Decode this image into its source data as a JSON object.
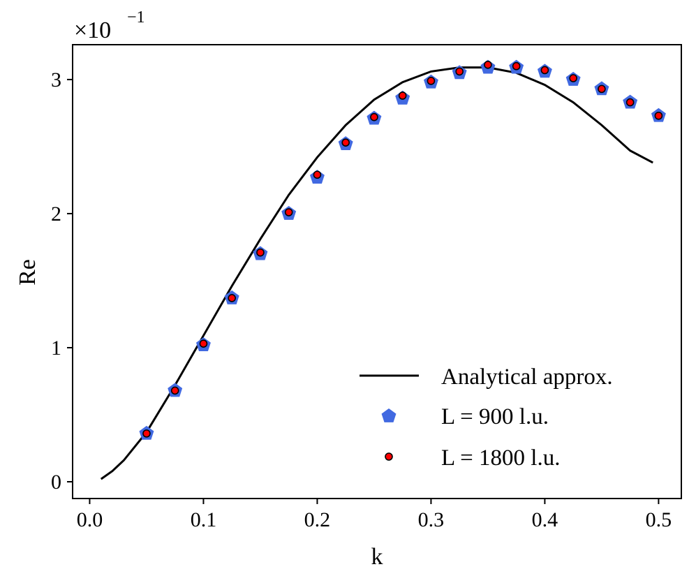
{
  "chart_data": {
    "type": "scatter",
    "title": "",
    "xlabel": "k",
    "ylabel": "Re",
    "xlim": [
      -0.015,
      0.52
    ],
    "ylim": [
      -0.125,
      3.26
    ],
    "y_multiplier": {
      "base": "×10",
      "exponent": "−1"
    },
    "x_ticks": [
      {
        "value": 0.0,
        "label": "0.0"
      },
      {
        "value": 0.1,
        "label": "0.1"
      },
      {
        "value": 0.2,
        "label": "0.2"
      },
      {
        "value": 0.3,
        "label": "0.3"
      },
      {
        "value": 0.4,
        "label": "0.4"
      },
      {
        "value": 0.5,
        "label": "0.5"
      }
    ],
    "y_ticks": [
      {
        "value": 0,
        "label": "0"
      },
      {
        "value": 1,
        "label": "1"
      },
      {
        "value": 2,
        "label": "2"
      },
      {
        "value": 3,
        "label": "3"
      }
    ],
    "grid": false,
    "legend": {
      "position": "lower-right"
    },
    "series": [
      {
        "name": "Analytical approx.",
        "kind": "line",
        "color": "#000000",
        "x": [
          0.01,
          0.02,
          0.03,
          0.05,
          0.075,
          0.1,
          0.125,
          0.15,
          0.175,
          0.2,
          0.225,
          0.25,
          0.275,
          0.3,
          0.325,
          0.35,
          0.375,
          0.4,
          0.425,
          0.45,
          0.475,
          0.495
        ],
        "y": [
          0.02,
          0.08,
          0.16,
          0.37,
          0.72,
          1.09,
          1.46,
          1.81,
          2.14,
          2.42,
          2.66,
          2.85,
          2.98,
          3.06,
          3.09,
          3.09,
          3.05,
          2.96,
          2.83,
          2.66,
          2.47,
          2.38
        ]
      },
      {
        "name": "L = 900 l.u.",
        "kind": "marker-pentagon",
        "color": "#4169e1",
        "x": [
          0.05,
          0.075,
          0.1,
          0.125,
          0.15,
          0.175,
          0.2,
          0.225,
          0.25,
          0.275,
          0.3,
          0.325,
          0.35,
          0.375,
          0.4,
          0.425,
          0.45,
          0.475,
          0.5
        ],
        "y": [
          0.36,
          0.68,
          1.02,
          1.37,
          1.7,
          2.0,
          2.27,
          2.52,
          2.71,
          2.86,
          2.98,
          3.05,
          3.09,
          3.09,
          3.06,
          3.0,
          2.93,
          2.83,
          2.73
        ]
      },
      {
        "name": "L = 1800 l.u.",
        "kind": "marker-circle",
        "color": "#ff0000",
        "edgecolor": "#000000",
        "x": [
          0.05,
          0.075,
          0.1,
          0.125,
          0.15,
          0.175,
          0.2,
          0.225,
          0.25,
          0.275,
          0.3,
          0.325,
          0.35,
          0.375,
          0.4,
          0.425,
          0.45,
          0.475,
          0.5
        ],
        "y": [
          0.36,
          0.68,
          1.03,
          1.37,
          1.71,
          2.01,
          2.29,
          2.53,
          2.72,
          2.88,
          2.99,
          3.06,
          3.11,
          3.1,
          3.07,
          3.01,
          2.93,
          2.83,
          2.73
        ]
      }
    ]
  }
}
